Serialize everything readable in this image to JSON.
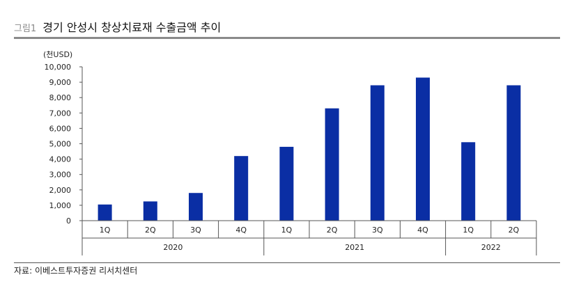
{
  "figure": {
    "number": "그림1",
    "title": "경기 안성시 창상치료재 수출금액 추이",
    "source": "자료: 이베스트투자증권 리서치센터"
  },
  "colors": {
    "bar": "#0a2ea4",
    "axis": "#555555",
    "header_rule": "#8a8a8a"
  },
  "chart_data": {
    "type": "bar",
    "ylabel": "(천USD)",
    "ylim": [
      0,
      10000
    ],
    "yticks": [
      "0",
      "1,000",
      "2,000",
      "3,000",
      "4,000",
      "5,000",
      "6,000",
      "7,000",
      "8,000",
      "9,000",
      "10,000"
    ],
    "categories": [
      "1Q",
      "2Q",
      "3Q",
      "4Q",
      "1Q",
      "2Q",
      "3Q",
      "4Q",
      "1Q",
      "2Q"
    ],
    "groups": [
      {
        "label": "2020",
        "count": 4
      },
      {
        "label": "2021",
        "count": 4
      },
      {
        "label": "2022",
        "count": 2
      }
    ],
    "values": [
      1050,
      1250,
      1800,
      4200,
      4800,
      7300,
      8800,
      9300,
      5100,
      8800
    ],
    "grid": false,
    "legend": "none"
  }
}
